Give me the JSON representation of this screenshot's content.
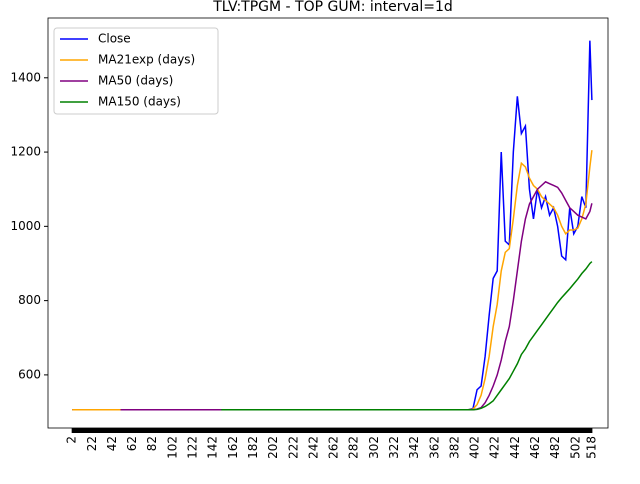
{
  "chart_data": {
    "type": "line",
    "title": "TLV:TPGM - TOP GUM: interval=1d",
    "x": [
      2,
      50,
      150,
      395,
      400,
      404,
      408,
      412,
      416,
      420,
      424,
      428,
      432,
      436,
      440,
      444,
      448,
      452,
      456,
      460,
      464,
      468,
      472,
      476,
      480,
      484,
      488,
      492,
      496,
      500,
      504,
      508,
      512,
      516,
      518
    ],
    "series": [
      {
        "name": "Close",
        "color": "#0000ff",
        "values": [
          506,
          506,
          506,
          506,
          510,
          560,
          570,
          650,
          760,
          860,
          880,
          1200,
          960,
          950,
          1200,
          1350,
          1250,
          1270,
          1100,
          1020,
          1100,
          1050,
          1080,
          1030,
          1050,
          1000,
          920,
          910,
          1050,
          980,
          1000,
          1080,
          1050,
          1500,
          1340
        ]
      },
      {
        "name": "MA21exp (days)",
        "color": "#ffa500",
        "values": [
          506,
          506,
          506,
          506,
          508,
          520,
          545,
          590,
          650,
          730,
          790,
          880,
          930,
          940,
          1020,
          1110,
          1170,
          1160,
          1130,
          1110,
          1100,
          1080,
          1070,
          1060,
          1050,
          1030,
          1000,
          980,
          990,
          990,
          995,
          1020,
          1060,
          1160,
          1205
        ]
      },
      {
        "name": "MA50 (days)",
        "color": "#800080",
        "values": [
          null,
          506,
          506,
          506,
          506,
          508,
          512,
          525,
          545,
          570,
          600,
          640,
          690,
          730,
          800,
          880,
          960,
          1020,
          1060,
          1080,
          1100,
          1110,
          1120,
          1115,
          1110,
          1105,
          1090,
          1070,
          1050,
          1040,
          1030,
          1025,
          1020,
          1040,
          1062
        ]
      },
      {
        "name": "MA150 (days)",
        "color": "#008000",
        "values": [
          null,
          null,
          506,
          506,
          506,
          507,
          510,
          515,
          522,
          530,
          545,
          560,
          575,
          590,
          610,
          630,
          655,
          670,
          690,
          705,
          720,
          735,
          750,
          765,
          780,
          795,
          808,
          820,
          832,
          845,
          858,
          873,
          885,
          900,
          905
        ]
      }
    ],
    "xlim": [
      -22,
      534
    ],
    "xticks": [
      2,
      22,
      42,
      62,
      82,
      102,
      122,
      142,
      162,
      182,
      202,
      222,
      242,
      262,
      282,
      302,
      322,
      342,
      362,
      382,
      402,
      422,
      442,
      462,
      482,
      502,
      518
    ],
    "ylim": [
      457,
      1561
    ],
    "yticks": [
      600,
      800,
      1000,
      1200,
      1400
    ],
    "legend": "upper left"
  }
}
